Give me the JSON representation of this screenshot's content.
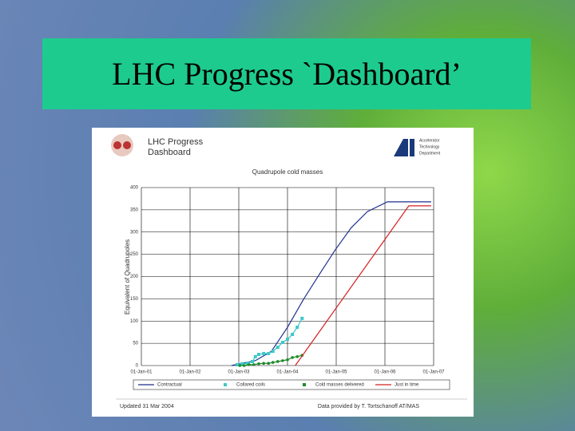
{
  "slide_title": "LHC Progress `Dashboard’",
  "header": {
    "name_line1": "LHC Progress",
    "name_line2": "Dashboard",
    "department_line1": "Accelerator",
    "department_line2": "Technology",
    "department_line3": "Department"
  },
  "footer": {
    "updated": "Updated 31 Mar 2004",
    "credit": "Data provided by T. Tortschanoff AT/MAS"
  },
  "chart_data": {
    "type": "line",
    "title": "Quadrupole cold masses",
    "y_label": "Equivalent of Quadrupoles",
    "xlim": [
      2001,
      2007
    ],
    "xticks": [
      {
        "value": 2001,
        "label": "01-Jan-01"
      },
      {
        "value": 2002,
        "label": "01-Jan-02"
      },
      {
        "value": 2003,
        "label": "01-Jan-03"
      },
      {
        "value": 2004,
        "label": "01-Jan-04"
      },
      {
        "value": 2005,
        "label": "01-Jan-05"
      },
      {
        "value": 2006,
        "label": "01-Jan-06"
      },
      {
        "value": 2007,
        "label": "01-Jan-07"
      }
    ],
    "ylim": [
      0,
      400
    ],
    "yticks": [
      0,
      50,
      100,
      150,
      200,
      250,
      300,
      350,
      400
    ],
    "grid": true,
    "legend": "bottom",
    "series": [
      {
        "name": "Contractual",
        "color": "#1f2f8f",
        "marker": "none",
        "x": [
          2002.85,
          2003.34,
          2003.67,
          2004.0,
          2004.33,
          2004.66,
          2004.98,
          2005.31,
          2005.64,
          2006.05,
          2006.95
        ],
        "values": [
          0,
          11,
          32,
          86,
          149,
          206,
          260,
          310,
          346,
          368,
          368
        ]
      },
      {
        "name": "Collared coils",
        "color": "#3cc8c8",
        "marker": "square",
        "x": [
          2002.97,
          2003.07,
          2003.18,
          2003.28,
          2003.34,
          2003.41,
          2003.51,
          2003.61,
          2003.7,
          2003.8,
          2003.9,
          2004.0,
          2004.1,
          2004.2,
          2004.3
        ],
        "values": [
          2,
          4,
          5,
          9,
          20,
          25,
          27,
          27,
          32,
          41,
          52,
          59,
          70,
          86,
          106
        ]
      },
      {
        "name": "Cold masses delivered",
        "color": "#1f8a2a",
        "marker": "circle",
        "x": [
          2003.02,
          2003.11,
          2003.21,
          2003.31,
          2003.41,
          2003.51,
          2003.61,
          2003.7,
          2003.8,
          2003.9,
          2004.0,
          2004.1,
          2004.2,
          2004.3
        ],
        "values": [
          0,
          0,
          2,
          2,
          4,
          5,
          5,
          7,
          9,
          11,
          13,
          18,
          20,
          23
        ]
      },
      {
        "name": "Just in time",
        "color": "#d42020",
        "marker": "none",
        "x": [
          2004.16,
          2006.49,
          2006.95
        ],
        "values": [
          0,
          359,
          359
        ]
      }
    ]
  }
}
